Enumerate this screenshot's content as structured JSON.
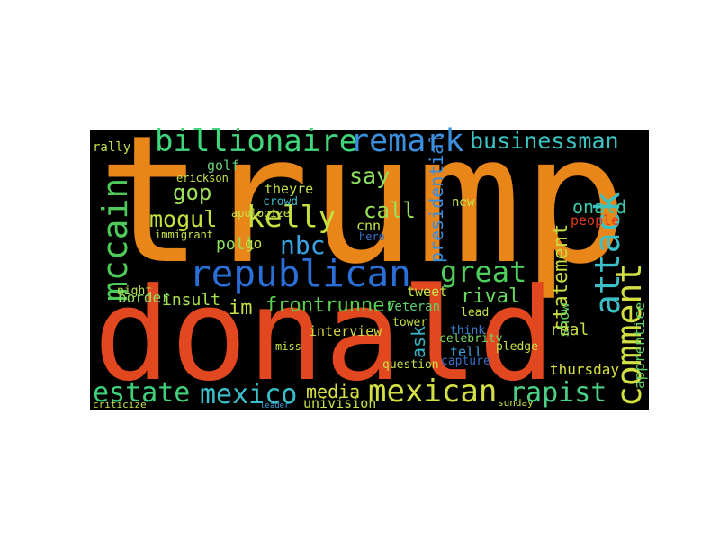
{
  "words": [
    {
      "text": "trump",
      "color": "#e8861a"
    },
    {
      "text": "donald",
      "color": "#e2481f"
    },
    {
      "text": "republican",
      "color": "#2a6fd8"
    },
    {
      "text": "billionaire",
      "color": "#3fd67c"
    },
    {
      "text": "remark",
      "color": "#3b8fdc"
    },
    {
      "text": "businessman",
      "color": "#3cc4c4"
    },
    {
      "text": "mccain",
      "color": "#4ec95a"
    },
    {
      "text": "gop",
      "color": "#9ee05a"
    },
    {
      "text": "mogul",
      "color": "#c6e040"
    },
    {
      "text": "kelly",
      "color": "#c6e040"
    },
    {
      "text": "nbc",
      "color": "#3aa4e2"
    },
    {
      "text": "say",
      "color": "#8fe060"
    },
    {
      "text": "great",
      "color": "#4fd05c"
    },
    {
      "text": "attack",
      "color": "#3cc0c8"
    },
    {
      "text": "comment",
      "color": "#d2e042"
    },
    {
      "text": "statement",
      "color": "#c8dc40"
    },
    {
      "text": "onald",
      "color": "#3cc8a8"
    },
    {
      "text": "people",
      "color": "#e0381c"
    },
    {
      "text": "frontrunner",
      "color": "#5ad050"
    },
    {
      "text": "insult",
      "color": "#a8e050"
    },
    {
      "text": "border",
      "color": "#8ee060"
    },
    {
      "text": "rival",
      "color": "#6ad860"
    },
    {
      "text": "estate",
      "color": "#3ed07a"
    },
    {
      "text": "mexico",
      "color": "#3ac0cc"
    },
    {
      "text": "media",
      "color": "#d8e040"
    },
    {
      "text": "mexican",
      "color": "#d4e042"
    },
    {
      "text": "rapist",
      "color": "#4ad084"
    },
    {
      "text": "presidential",
      "color": "#3a8ee0"
    },
    {
      "text": "call",
      "color": "#9ae058"
    },
    {
      "text": "cnn",
      "color": "#c0e048"
    },
    {
      "text": "poll",
      "color": "#8ce060"
    },
    {
      "text": "golf",
      "color": "#6ad078"
    },
    {
      "text": "interview",
      "color": "#d8d840"
    },
    {
      "text": "veteran",
      "color": "#60d070"
    },
    {
      "text": "tweet",
      "color": "#c8e048"
    },
    {
      "text": "thursday",
      "color": "#d8e040"
    },
    {
      "text": "show",
      "color": "#60d060"
    },
    {
      "text": "apprentice",
      "color": "#60d068"
    },
    {
      "text": "im",
      "color": "#c8e048"
    },
    {
      "text": "univision",
      "color": "#c8e048"
    },
    {
      "text": "celebrity",
      "color": "#7ad860"
    },
    {
      "text": "night",
      "color": "#b8e050"
    },
    {
      "text": "rally",
      "color": "#c0e048"
    },
    {
      "text": "theyre",
      "color": "#c8e048"
    },
    {
      "text": "crowd",
      "color": "#3ab8c8"
    },
    {
      "text": "ask",
      "color": "#3ab0c0"
    },
    {
      "text": "real",
      "color": "#c8e048"
    },
    {
      "text": "tell",
      "color": "#3a9ed8"
    },
    {
      "text": "think",
      "color": "#3a7ed0"
    },
    {
      "text": "capture",
      "color": "#3a70c8"
    },
    {
      "text": "question",
      "color": "#c8e048"
    },
    {
      "text": "miss",
      "color": "#c8e048"
    },
    {
      "text": "go",
      "color": "#c8e048"
    },
    {
      "text": "new",
      "color": "#c8e048"
    },
    {
      "text": "hero",
      "color": "#3a70c8"
    },
    {
      "text": "immigrant",
      "color": "#c8e048"
    },
    {
      "text": "erickson",
      "color": "#c8e048"
    },
    {
      "text": "tower",
      "color": "#c8e048"
    },
    {
      "text": "pledge",
      "color": "#c8e048"
    },
    {
      "text": "sunday",
      "color": "#c8e048"
    },
    {
      "text": "lead",
      "color": "#c8e048"
    },
    {
      "text": "criticize",
      "color": "#c8e048"
    },
    {
      "text": "leader",
      "color": "#3a9ed8"
    },
    {
      "text": "apologize",
      "color": "#c8e048"
    }
  ]
}
